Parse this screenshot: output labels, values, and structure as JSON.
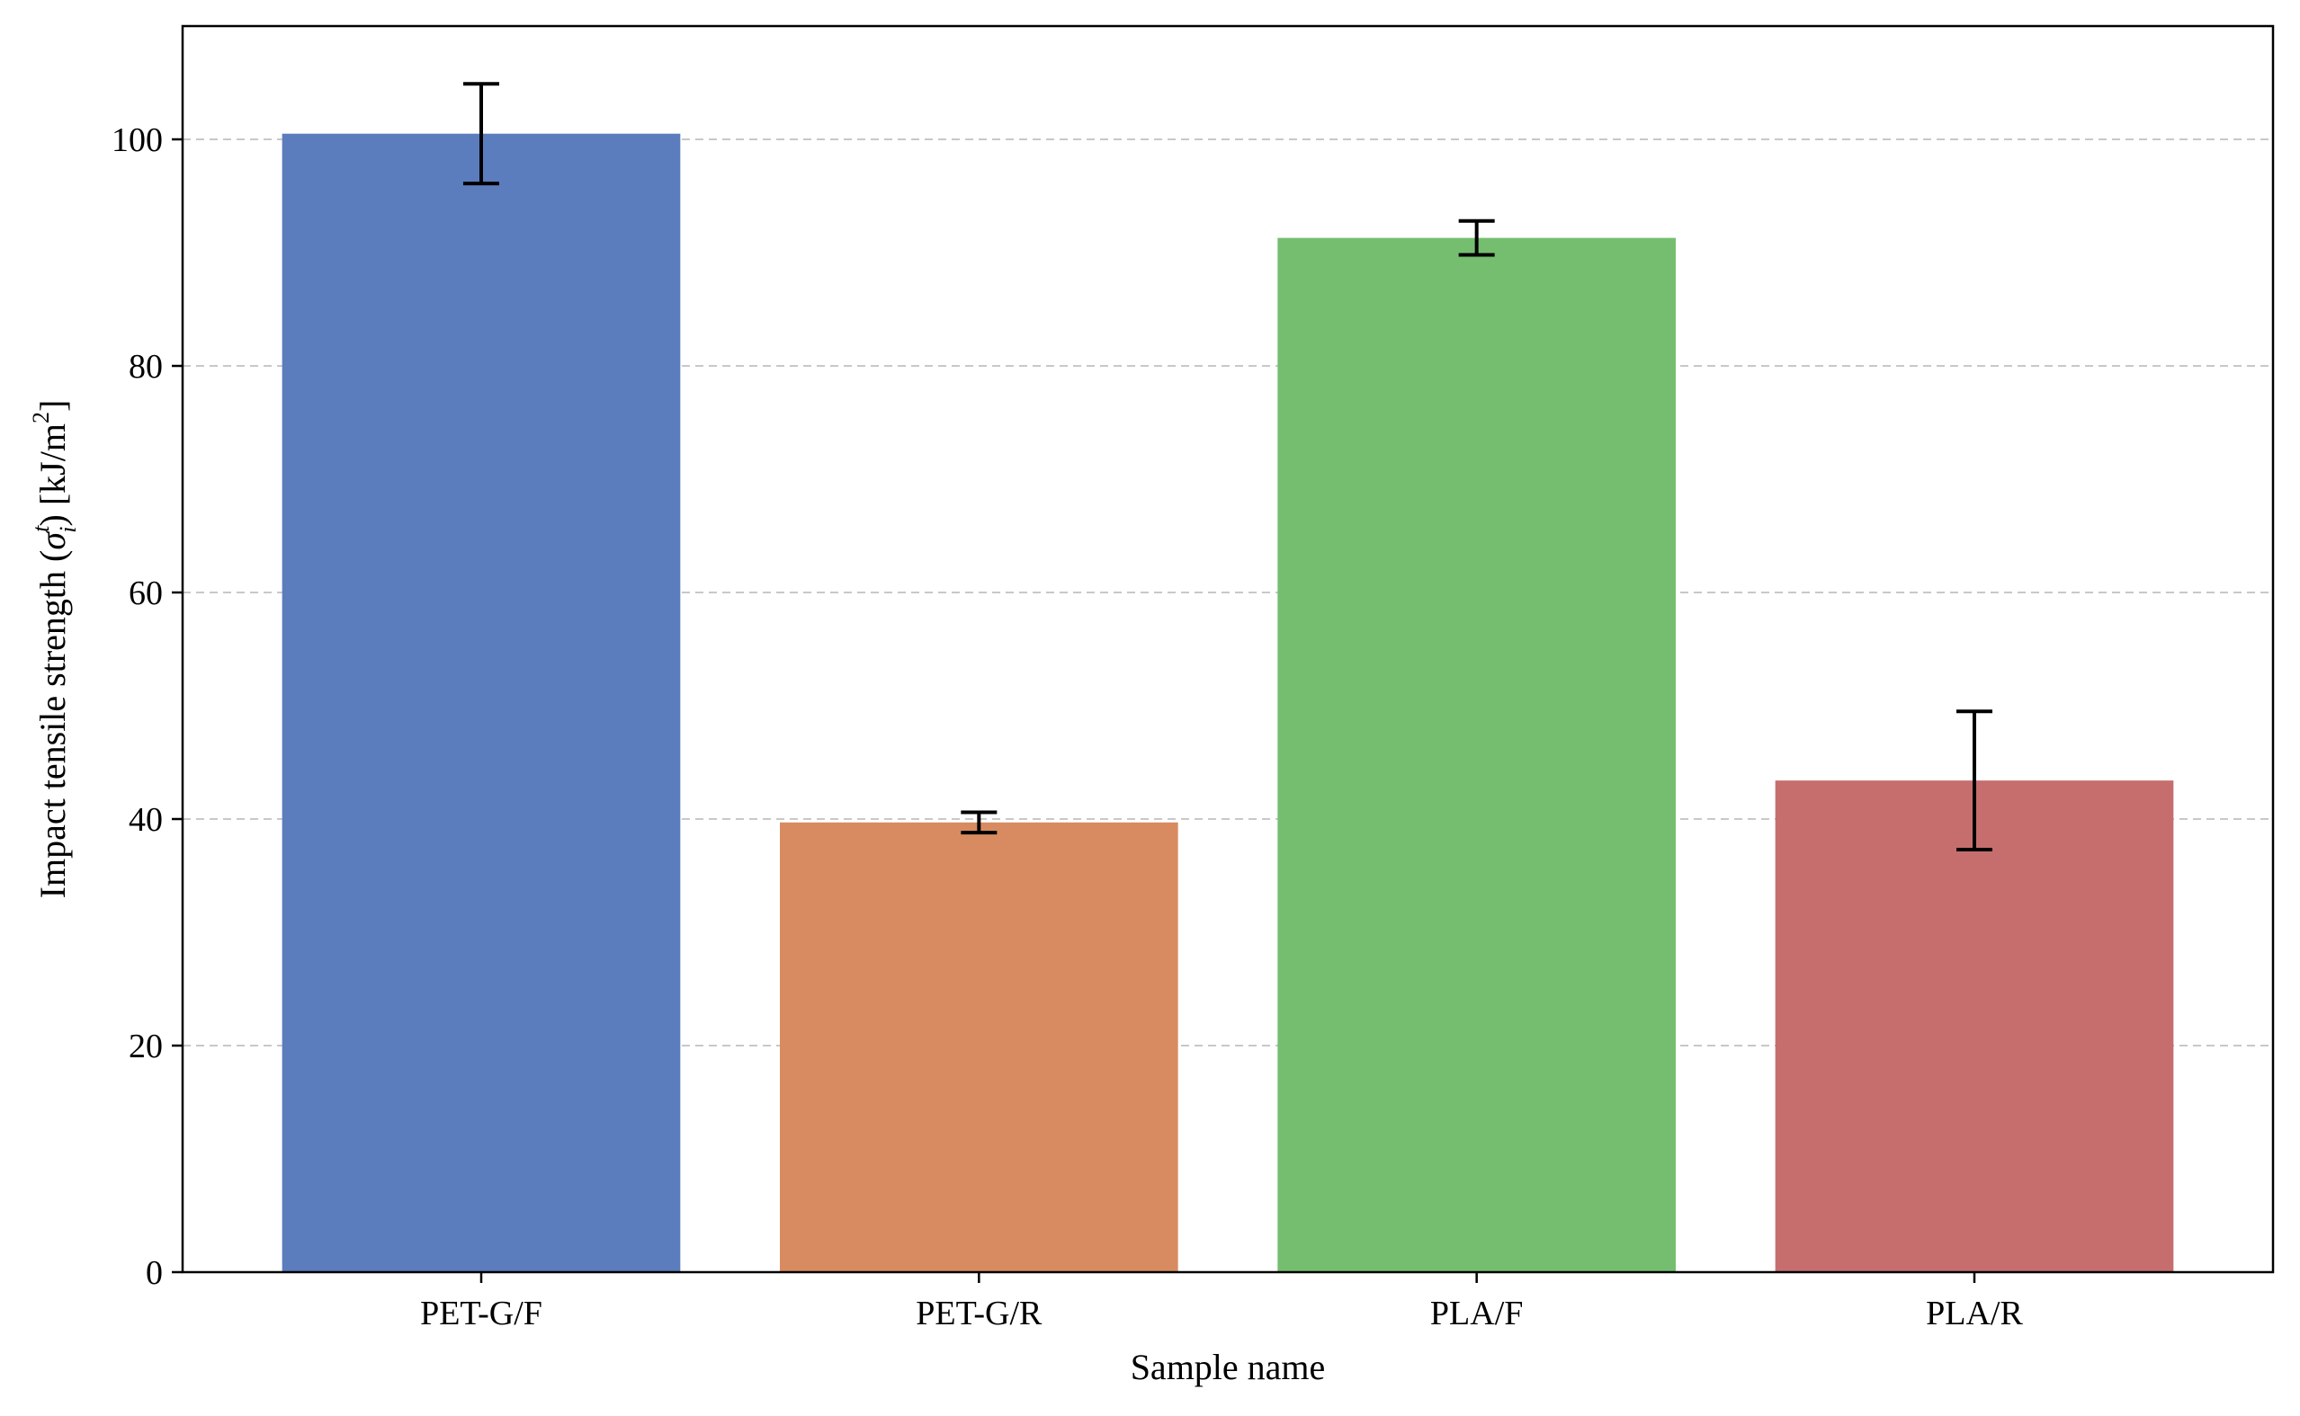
{
  "chart_data": {
    "type": "bar",
    "title": "",
    "xlabel": "Sample name",
    "ylabel": "Impact tensile strength (σᵢᵗ) [kJ/m²]",
    "ylabel_parts": {
      "prefix": "Impact tensile strength (",
      "symbol": "σ",
      "symbol_sup": "t",
      "symbol_sub": "i",
      "mid": ") [kJ/m",
      "unit_sup": "2",
      "suffix": "]"
    },
    "categories": [
      "PET-G/F",
      "PET-G/R",
      "PLA/F",
      "PLA/R"
    ],
    "values": [
      100.5,
      39.7,
      91.3,
      43.4
    ],
    "errors": [
      4.4,
      0.9,
      1.5,
      6.1
    ],
    "colors": [
      "#5b7dbd",
      "#d88b60",
      "#75be70",
      "#c66e6e"
    ],
    "ylim": [
      0,
      110
    ],
    "yticks": [
      0,
      20,
      40,
      60,
      80,
      100
    ],
    "grid": "y-dashed",
    "legend": "none"
  }
}
